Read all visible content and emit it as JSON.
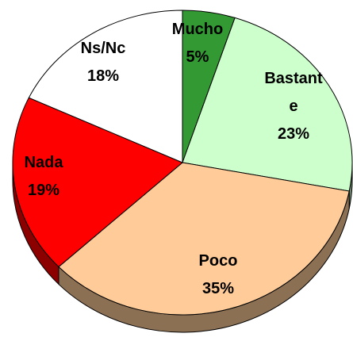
{
  "chart_data": {
    "type": "pie",
    "categories": [
      "Mucho",
      "Bastante",
      "Poco",
      "Nada",
      "Ns/Nc"
    ],
    "values": [
      5,
      23,
      35,
      19,
      18
    ],
    "value_labels": [
      "5%",
      "23%",
      "35%",
      "19%",
      "18%"
    ],
    "colors": [
      "#339933",
      "#ccffcc",
      "#ffcc99",
      "#ff0000",
      "#ffffff"
    ]
  }
}
